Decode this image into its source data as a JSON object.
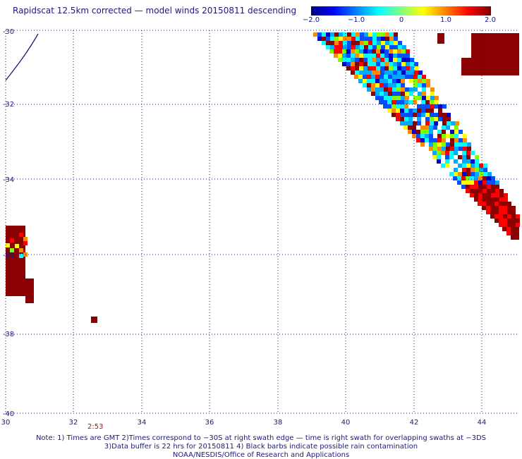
{
  "title": "Rapidscat 12.5km corrected — model winds 20150811 descending",
  "colorbar": {
    "ticks": [
      "−2.0",
      "−1.0",
      "0",
      "1.0",
      "2.0"
    ],
    "colors": [
      "#000080",
      "#0000ff",
      "#0080ff",
      "#00ffff",
      "#80ff80",
      "#ffff00",
      "#ff8000",
      "#ff0000",
      "#800000"
    ]
  },
  "map": {
    "lat_labels": [
      "-30",
      "-32",
      "-34",
      "-36",
      "-38",
      "-40"
    ],
    "lon_labels": [
      "30",
      "32",
      "34",
      "36",
      "38",
      "40",
      "42",
      "44"
    ],
    "lon_range": [
      30,
      45
    ],
    "lat_range": [
      -30,
      -40
    ],
    "grid_style": "dotted",
    "colors": {
      "grid": "#1a1a7a",
      "coast": "#1a1a7a",
      "deep_red": "#8b0000",
      "red": "#ff0000",
      "orange": "#ff8c00",
      "yellow": "#ffff00",
      "lime": "#80ff00",
      "cyan": "#00ffff",
      "sky": "#00aaff",
      "blue": "#0050ff",
      "dark_blue": "#0000c8"
    }
  },
  "time_label": "2:53",
  "notes": [
    "Note: 1) Times are GMT 2)Times correspond to −30S at right swath edge — time is right swath for overlapping swaths at −3DS",
    "3)Data buffer is 22 hrs for 20150811 4) Black barbs indicate possible rain contamination",
    "NOAA/NESDIS/Office of Research and Applications"
  ]
}
